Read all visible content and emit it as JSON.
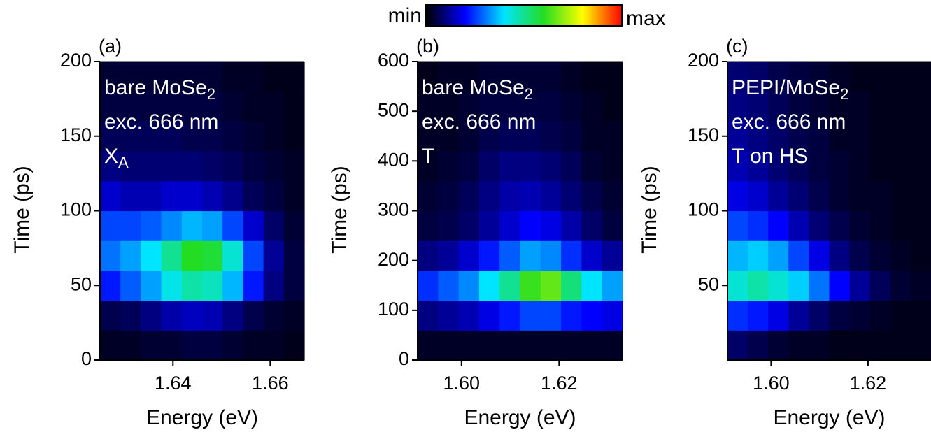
{
  "colorbar": {
    "min_label": "min",
    "max_label": "max",
    "zlim": [
      0,
      1
    ],
    "colors": [
      "#000000",
      "#0000ff",
      "#00e5ff",
      "#22dd22",
      "#ffff00",
      "#ff0000"
    ]
  },
  "chart_data": [
    {
      "type": "heatmap",
      "panel_label": "(a)",
      "xlabel": "Energy (eV)",
      "ylabel": "Time (ps)",
      "annotations": [
        [
          {
            "text": "bare MoSe",
            "sub": "2"
          }
        ],
        [
          {
            "text": "exc. 666 nm"
          }
        ],
        [
          {
            "text": "X",
            "sub": "A"
          }
        ]
      ],
      "xlim": [
        1.625,
        1.667
      ],
      "ylim": [
        0,
        200
      ],
      "xticks": [
        1.64,
        1.66
      ],
      "yticks": [
        0,
        50,
        100,
        150,
        200
      ],
      "x": [
        1.6271,
        1.6313,
        1.6355,
        1.6397,
        1.6439,
        1.6481,
        1.6523,
        1.6565,
        1.6607,
        1.6649
      ],
      "y": [
        10,
        30,
        50,
        70,
        90,
        110,
        130,
        150,
        170,
        190
      ],
      "z": [
        [
          0.03,
          0.03,
          0.04,
          0.04,
          0.05,
          0.05,
          0.04,
          0.03,
          0.03,
          0.02
        ],
        [
          0.06,
          0.07,
          0.1,
          0.13,
          0.15,
          0.14,
          0.1,
          0.06,
          0.04,
          0.03
        ],
        [
          0.22,
          0.28,
          0.34,
          0.42,
          0.48,
          0.46,
          0.36,
          0.22,
          0.1,
          0.05
        ],
        [
          0.3,
          0.34,
          0.4,
          0.5,
          0.6,
          0.58,
          0.44,
          0.26,
          0.12,
          0.05
        ],
        [
          0.26,
          0.26,
          0.28,
          0.32,
          0.36,
          0.34,
          0.26,
          0.16,
          0.08,
          0.04
        ],
        [
          0.16,
          0.14,
          0.14,
          0.16,
          0.16,
          0.14,
          0.11,
          0.07,
          0.05,
          0.03
        ],
        [
          0.1,
          0.09,
          0.09,
          0.09,
          0.09,
          0.08,
          0.07,
          0.05,
          0.04,
          0.03
        ],
        [
          0.07,
          0.07,
          0.07,
          0.07,
          0.06,
          0.06,
          0.05,
          0.04,
          0.03,
          0.02
        ],
        [
          0.05,
          0.05,
          0.05,
          0.05,
          0.05,
          0.05,
          0.04,
          0.03,
          0.03,
          0.02
        ],
        [
          0.04,
          0.04,
          0.04,
          0.04,
          0.04,
          0.04,
          0.03,
          0.03,
          0.02,
          0.02
        ]
      ]
    },
    {
      "type": "heatmap",
      "panel_label": "(b)",
      "xlabel": "Energy (eV)",
      "ylabel": "Time (ps)",
      "annotations": [
        [
          {
            "text": "bare MoSe",
            "sub": "2"
          }
        ],
        [
          {
            "text": "exc. 666 nm"
          }
        ],
        [
          {
            "text": "T"
          }
        ]
      ],
      "xlim": [
        1.591,
        1.633
      ],
      "ylim": [
        0,
        600
      ],
      "xticks": [
        {
          "value": 1.6,
          "label": "1.60"
        },
        1.62
      ],
      "yticks": [
        0,
        100,
        200,
        300,
        400,
        500,
        600
      ],
      "x": [
        1.5931,
        1.5973,
        1.6015,
        1.6057,
        1.6099,
        1.6141,
        1.6183,
        1.6225,
        1.6267,
        1.6309
      ],
      "y": [
        30,
        90,
        150,
        210,
        270,
        330,
        390,
        450,
        510,
        570
      ],
      "z": [
        [
          0.03,
          0.03,
          0.03,
          0.03,
          0.03,
          0.03,
          0.03,
          0.03,
          0.03,
          0.03
        ],
        [
          0.1,
          0.12,
          0.14,
          0.18,
          0.22,
          0.26,
          0.26,
          0.22,
          0.2,
          0.18
        ],
        [
          0.24,
          0.28,
          0.32,
          0.4,
          0.5,
          0.62,
          0.66,
          0.52,
          0.4,
          0.34
        ],
        [
          0.1,
          0.12,
          0.16,
          0.22,
          0.28,
          0.34,
          0.32,
          0.24,
          0.16,
          0.12
        ],
        [
          0.05,
          0.06,
          0.08,
          0.12,
          0.16,
          0.2,
          0.18,
          0.13,
          0.08,
          0.05
        ],
        [
          0.04,
          0.05,
          0.07,
          0.1,
          0.13,
          0.14,
          0.12,
          0.09,
          0.06,
          0.04
        ],
        [
          0.03,
          0.04,
          0.05,
          0.08,
          0.1,
          0.1,
          0.09,
          0.07,
          0.04,
          0.03
        ],
        [
          0.03,
          0.03,
          0.04,
          0.06,
          0.07,
          0.07,
          0.06,
          0.05,
          0.03,
          0.03
        ],
        [
          0.03,
          0.03,
          0.04,
          0.05,
          0.05,
          0.05,
          0.05,
          0.04,
          0.03,
          0.02
        ],
        [
          0.02,
          0.03,
          0.03,
          0.04,
          0.04,
          0.04,
          0.04,
          0.03,
          0.02,
          0.02
        ]
      ]
    },
    {
      "type": "heatmap",
      "panel_label": "(c)",
      "xlabel": "Energy (eV)",
      "ylabel": "Time (ps)",
      "annotations": [
        [
          {
            "text": "PEPI/MoSe",
            "sub": "2"
          }
        ],
        [
          {
            "text": "exc. 666 nm"
          }
        ],
        [
          {
            "text": "T on HS"
          }
        ]
      ],
      "xlim": [
        1.591,
        1.633
      ],
      "ylim": [
        0,
        200
      ],
      "xticks": [
        {
          "value": 1.6,
          "label": "1.60"
        },
        1.62
      ],
      "yticks": [
        50,
        100,
        150,
        200
      ],
      "x": [
        1.5931,
        1.5973,
        1.6015,
        1.6057,
        1.6099,
        1.6141,
        1.6183,
        1.6225,
        1.6267,
        1.6309
      ],
      "y": [
        10,
        30,
        50,
        70,
        90,
        110,
        130,
        150,
        170,
        190
      ],
      "z": [
        [
          0.08,
          0.06,
          0.04,
          0.03,
          0.03,
          0.02,
          0.02,
          0.02,
          0.02,
          0.02
        ],
        [
          0.24,
          0.22,
          0.18,
          0.12,
          0.08,
          0.05,
          0.04,
          0.03,
          0.02,
          0.02
        ],
        [
          0.44,
          0.48,
          0.44,
          0.38,
          0.3,
          0.2,
          0.12,
          0.07,
          0.04,
          0.03
        ],
        [
          0.36,
          0.38,
          0.34,
          0.26,
          0.18,
          0.1,
          0.06,
          0.04,
          0.03,
          0.02
        ],
        [
          0.26,
          0.24,
          0.2,
          0.14,
          0.09,
          0.06,
          0.04,
          0.03,
          0.02,
          0.02
        ],
        [
          0.18,
          0.16,
          0.12,
          0.09,
          0.06,
          0.04,
          0.03,
          0.03,
          0.02,
          0.02
        ],
        [
          0.14,
          0.12,
          0.09,
          0.07,
          0.05,
          0.04,
          0.03,
          0.02,
          0.02,
          0.02
        ],
        [
          0.12,
          0.1,
          0.08,
          0.06,
          0.05,
          0.03,
          0.03,
          0.02,
          0.02,
          0.02
        ],
        [
          0.1,
          0.09,
          0.07,
          0.05,
          0.04,
          0.03,
          0.03,
          0.02,
          0.02,
          0.02
        ],
        [
          0.09,
          0.08,
          0.06,
          0.05,
          0.04,
          0.03,
          0.02,
          0.02,
          0.02,
          0.02
        ]
      ]
    }
  ]
}
